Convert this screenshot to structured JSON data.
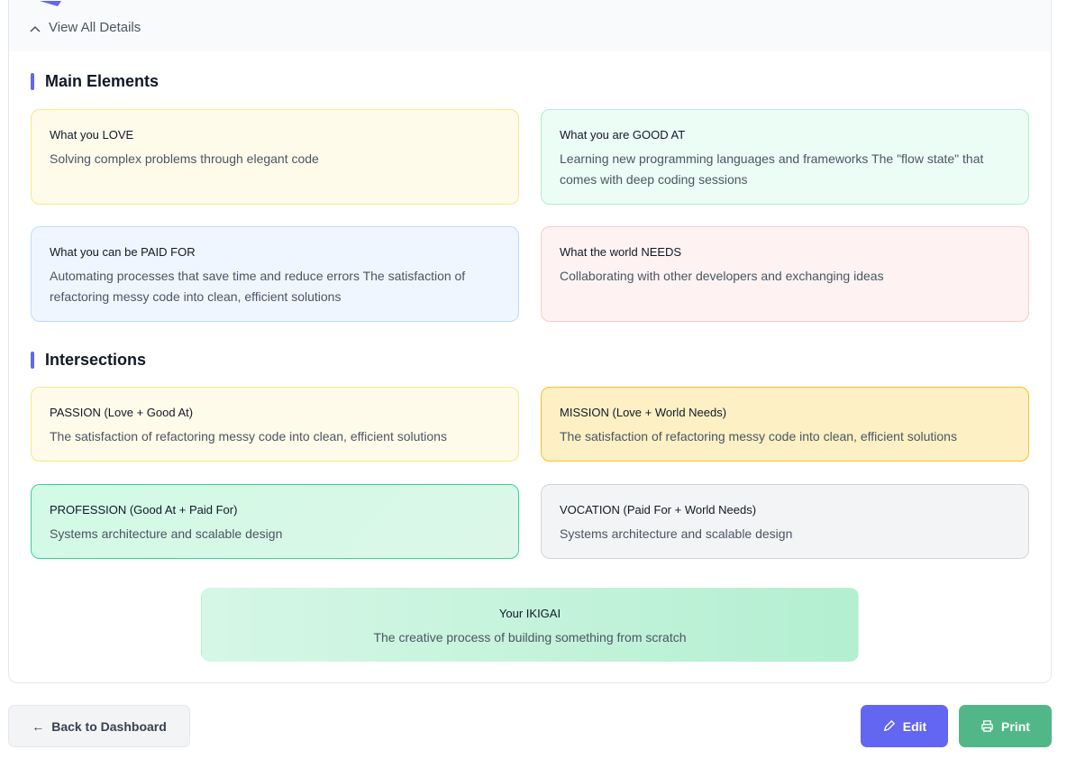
{
  "header": {
    "toggle_label": "View All Details"
  },
  "main_elements": {
    "title": "Main Elements",
    "cards": [
      {
        "title": "What you LOVE",
        "text": "Solving complex problems through elegant code"
      },
      {
        "title": "What you are GOOD AT",
        "text": "Learning new programming languages and frameworks The \"flow state\" that comes with deep coding sessions"
      },
      {
        "title": "What you can be PAID FOR",
        "text": "Automating processes that save time and reduce errors The satisfaction of refactoring messy code into clean, efficient solutions"
      },
      {
        "title": "What the world NEEDS",
        "text": "Collaborating with other developers and exchanging ideas"
      }
    ]
  },
  "intersections": {
    "title": "Intersections",
    "cards": [
      {
        "title": "PASSION (Love + Good At)",
        "text": "The satisfaction of refactoring messy code into clean, efficient solutions"
      },
      {
        "title": "MISSION (Love + World Needs)",
        "text": "The satisfaction of refactoring messy code into clean, efficient solutions"
      },
      {
        "title": "PROFESSION (Good At + Paid For)",
        "text": "Systems architecture and scalable design"
      },
      {
        "title": "VOCATION (Paid For + World Needs)",
        "text": "Systems architecture and scalable design"
      }
    ]
  },
  "ikigai": {
    "title": "Your IKIGAI",
    "text": "The creative process of building something from scratch"
  },
  "footer": {
    "back_label": "Back to Dashboard",
    "edit_label": "Edit",
    "print_label": "Print"
  },
  "colors": {
    "accent": "#6366f1",
    "print": "#52b788"
  }
}
